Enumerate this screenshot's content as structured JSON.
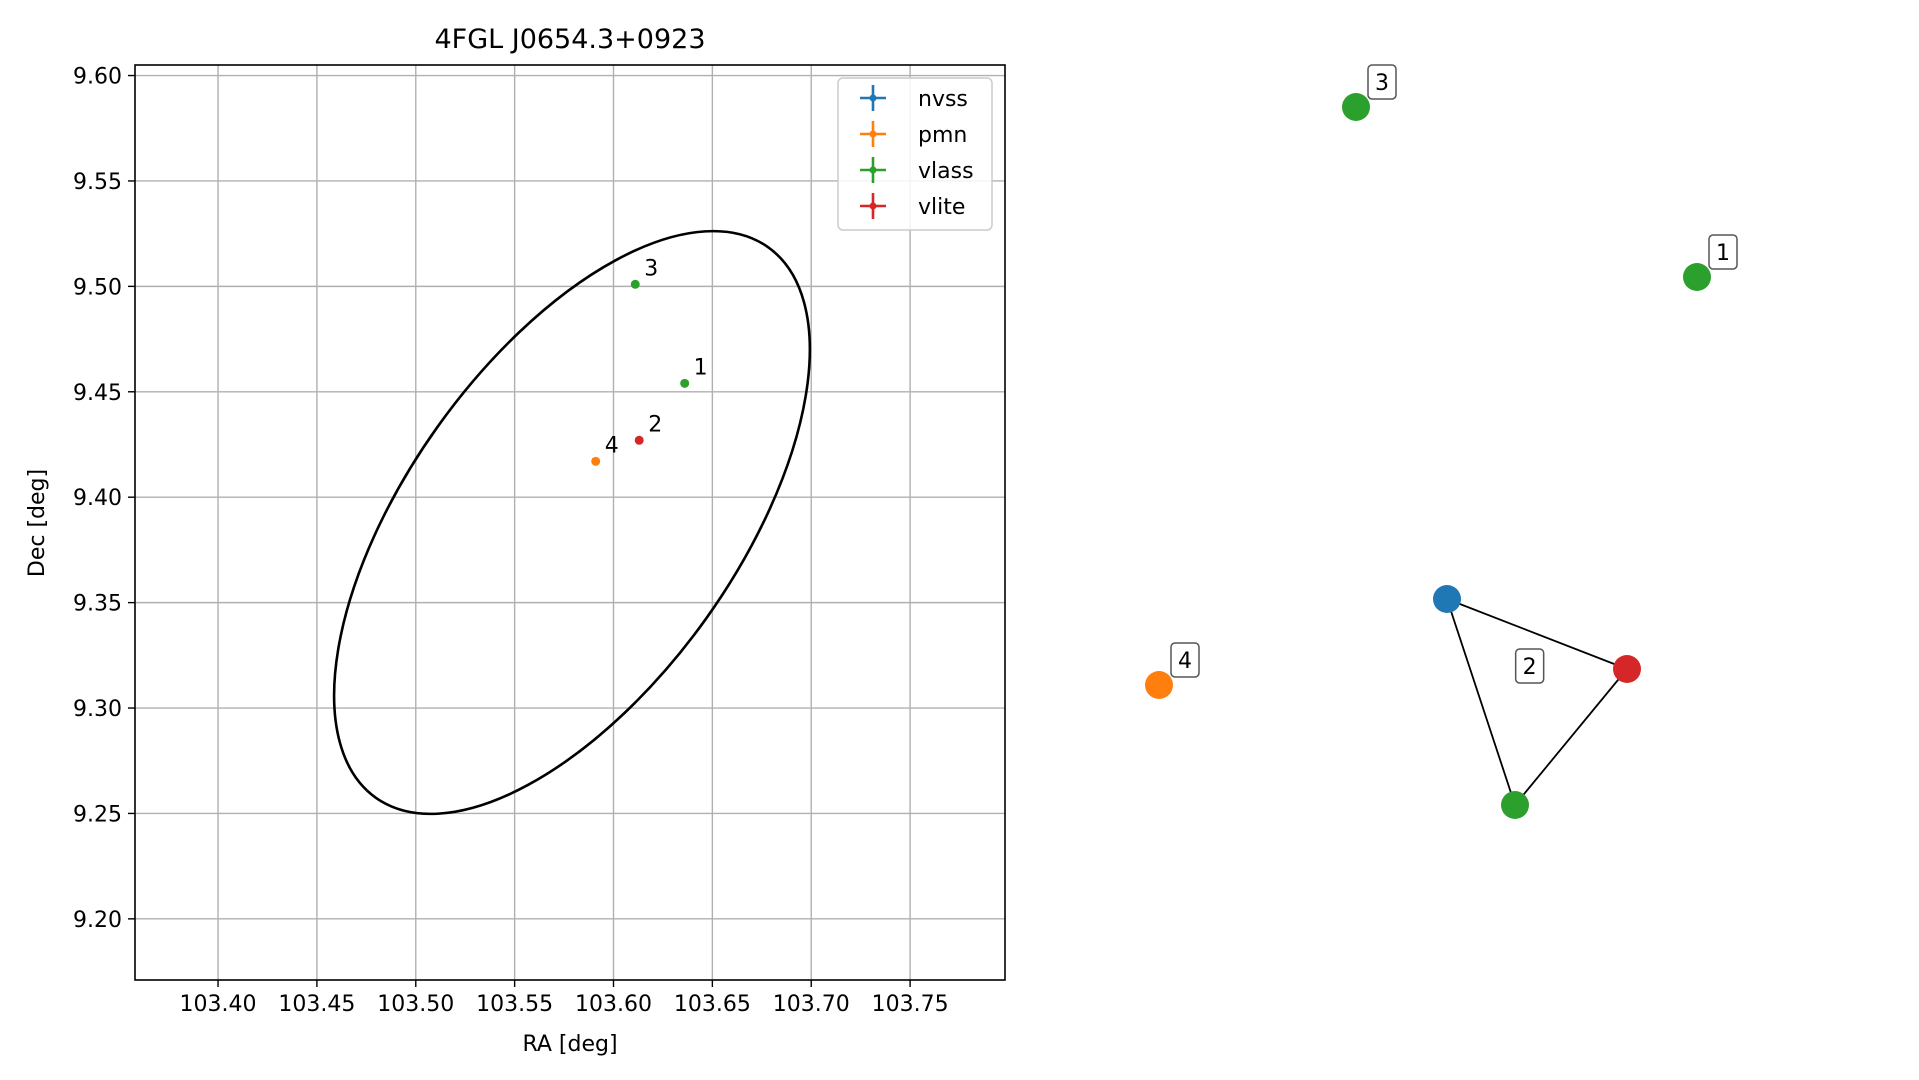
{
  "chart_data": [
    {
      "type": "scatter",
      "title": "4FGL J0654.3+0923",
      "xlabel": "RA [deg]",
      "ylabel": "Dec [deg]",
      "xlim": [
        103.358,
        103.798
      ],
      "ylim": [
        9.171,
        9.605
      ],
      "xticks": [
        103.4,
        103.45,
        103.5,
        103.55,
        103.6,
        103.65,
        103.7,
        103.75
      ],
      "xtick_labels": [
        "103.40",
        "103.45",
        "103.50",
        "103.55",
        "103.60",
        "103.65",
        "103.70",
        "103.75"
      ],
      "yticks": [
        9.2,
        9.25,
        9.3,
        9.35,
        9.4,
        9.45,
        9.5,
        9.55,
        9.6
      ],
      "ytick_labels": [
        "9.20",
        "9.25",
        "9.30",
        "9.35",
        "9.40",
        "9.45",
        "9.50",
        "9.55",
        "9.60"
      ],
      "grid": true,
      "legend_position": "top-right",
      "legend": [
        {
          "name": "nvss",
          "color": "#1f77b4"
        },
        {
          "name": "pmn",
          "color": "#ff7f0e"
        },
        {
          "name": "vlass",
          "color": "#2ca02c"
        },
        {
          "name": "vlite",
          "color": "#d62728"
        }
      ],
      "points": [
        {
          "label": "1",
          "x": 103.636,
          "y": 9.454,
          "color": "#2ca02c"
        },
        {
          "label": "2",
          "x": 103.613,
          "y": 9.427,
          "color": "#d62728"
        },
        {
          "label": "3",
          "x": 103.611,
          "y": 9.501,
          "color": "#2ca02c"
        },
        {
          "label": "4",
          "x": 103.591,
          "y": 9.417,
          "color": "#ff7f0e"
        }
      ],
      "ellipse": {
        "center_x": 103.579,
        "center_y": 9.388,
        "color": "#000000"
      }
    },
    {
      "type": "network",
      "nodes": [
        {
          "id": "vlass-3",
          "color": "#2ca02c",
          "label": "3"
        },
        {
          "id": "vlass-1",
          "color": "#2ca02c",
          "label": "1"
        },
        {
          "id": "nvss",
          "color": "#1f77b4",
          "label": ""
        },
        {
          "id": "vlite",
          "color": "#d62728",
          "label": ""
        },
        {
          "id": "vlass-2",
          "color": "#2ca02c",
          "label": ""
        },
        {
          "id": "pmn-4",
          "color": "#ff7f0e",
          "label": "4"
        }
      ],
      "edges": [
        [
          "nvss",
          "vlite"
        ],
        [
          "nvss",
          "vlass-2"
        ],
        [
          "vlite",
          "vlass-2"
        ]
      ],
      "group_labels": [
        {
          "label": "2"
        }
      ]
    }
  ]
}
